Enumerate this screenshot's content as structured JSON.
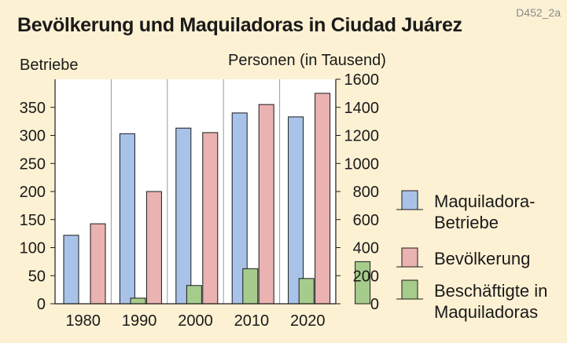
{
  "title": "Bevölkerung und Maquiladoras in Ciudad Juárez",
  "code": "D452_2a",
  "chart_data": {
    "type": "bar",
    "categories": [
      "1980",
      "1990",
      "2000",
      "2010",
      "2020"
    ],
    "left_axis": {
      "label": "Betriebe",
      "ylim": [
        0,
        400
      ],
      "ticks": [
        0,
        50,
        100,
        150,
        200,
        250,
        300,
        350
      ]
    },
    "right_axis": {
      "label": "Personen (in Tausend)",
      "ylim": [
        0,
        1600
      ],
      "ticks": [
        0,
        200,
        400,
        600,
        800,
        1000,
        1200,
        1400,
        1600
      ]
    },
    "series": [
      {
        "name_lines": [
          "Maquiladora-",
          "Betriebe"
        ],
        "axis": "left",
        "color": "#a9c3e8",
        "values": [
          122,
          303,
          313,
          340,
          333
        ]
      },
      {
        "name_lines": [
          "Bevölkerung"
        ],
        "axis": "right",
        "color": "#ebb2b2",
        "values": [
          570,
          800,
          1220,
          1420,
          1500
        ]
      },
      {
        "name_lines": [
          "Beschäftigte in",
          "Maquiladoras"
        ],
        "axis": "right",
        "color": "#a6cc8c",
        "values": [
          40,
          130,
          250,
          180,
          300
        ]
      }
    ],
    "grid": false,
    "legend": "right"
  }
}
